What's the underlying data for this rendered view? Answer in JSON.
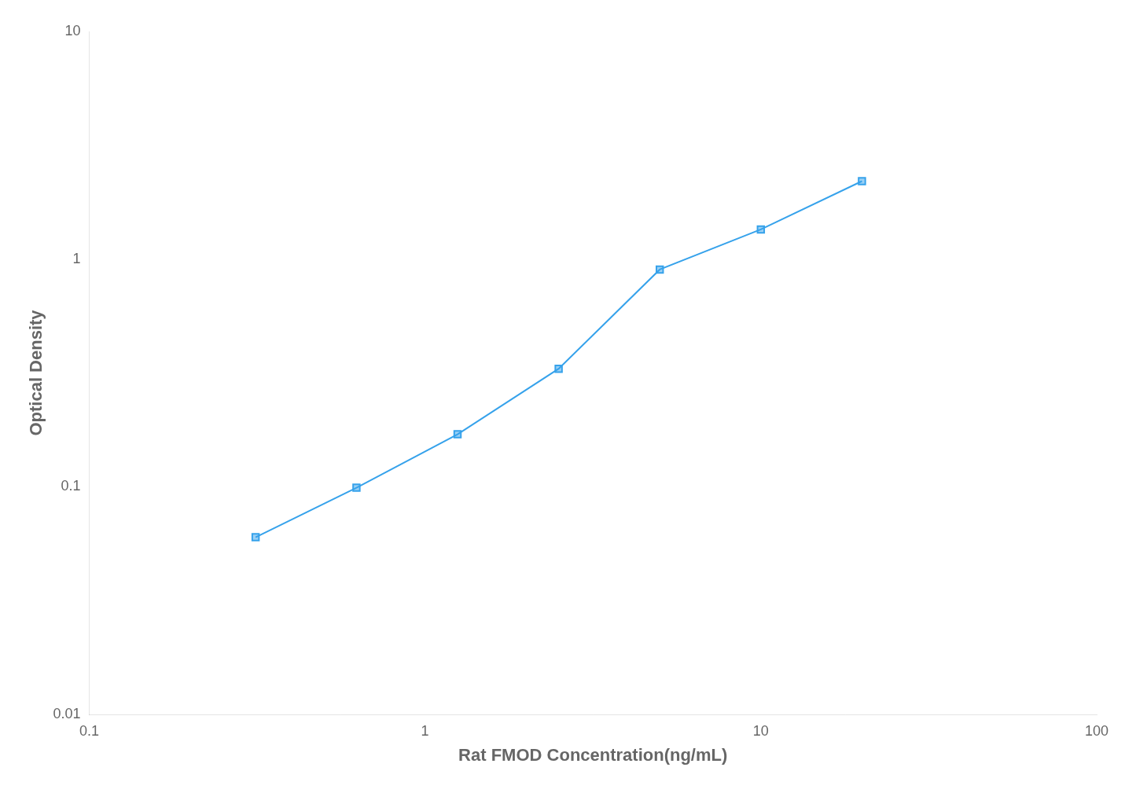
{
  "chart_data": {
    "type": "line",
    "x": [
      0.313,
      0.625,
      1.25,
      2.5,
      5.0,
      10.0,
      20.0
    ],
    "values": [
      0.06,
      0.099,
      0.17,
      0.33,
      0.9,
      1.35,
      2.2
    ],
    "xlabel": "Rat FMOD Concentration(ng/mL)",
    "ylabel": "Optical Density",
    "xlim": [
      0.1,
      100
    ],
    "ylim": [
      0.01,
      10
    ],
    "xticks": [
      0.1,
      1,
      10,
      100
    ],
    "yticks": [
      0.01,
      0.1,
      1,
      10
    ],
    "log": true,
    "marker": "square",
    "grid": false
  }
}
